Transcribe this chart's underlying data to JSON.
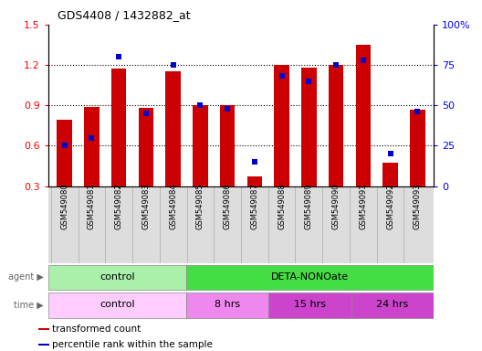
{
  "title": "GDS4408 / 1432882_at",
  "samples": [
    "GSM549080",
    "GSM549081",
    "GSM549082",
    "GSM549083",
    "GSM549084",
    "GSM549085",
    "GSM549086",
    "GSM549087",
    "GSM549088",
    "GSM549089",
    "GSM549090",
    "GSM549091",
    "GSM549092",
    "GSM549093"
  ],
  "transformed_count": [
    0.79,
    0.89,
    1.17,
    0.88,
    1.15,
    0.9,
    0.9,
    0.37,
    1.2,
    1.18,
    1.2,
    1.35,
    0.47,
    0.87
  ],
  "percentile_rank": [
    25,
    30,
    80,
    45,
    75,
    50,
    48,
    15,
    68,
    65,
    75,
    78,
    20,
    46
  ],
  "ylim_left": [
    0.3,
    1.5
  ],
  "ylim_right": [
    0,
    100
  ],
  "yticks_left": [
    0.3,
    0.6,
    0.9,
    1.2,
    1.5
  ],
  "yticks_right": [
    0,
    25,
    50,
    75,
    100
  ],
  "bar_color": "#cc0000",
  "percentile_color": "#0000cc",
  "agent_labels": [
    {
      "label": "control",
      "start": 0,
      "end": 5,
      "color": "#aaf0aa"
    },
    {
      "label": "DETA-NONOate",
      "start": 5,
      "end": 14,
      "color": "#44dd44"
    }
  ],
  "time_labels": [
    {
      "label": "control",
      "start": 0,
      "end": 5,
      "color": "#ffccff"
    },
    {
      "label": "8 hrs",
      "start": 5,
      "end": 8,
      "color": "#ee88ee"
    },
    {
      "label": "15 hrs",
      "start": 8,
      "end": 11,
      "color": "#cc44cc"
    },
    {
      "label": "24 hrs",
      "start": 11,
      "end": 14,
      "color": "#cc44cc"
    }
  ],
  "background_color": "#ffffff",
  "xticklabel_bg": "#dddddd",
  "legend_items": [
    {
      "label": "transformed count",
      "color": "#cc0000"
    },
    {
      "label": "percentile rank within the sample",
      "color": "#0000cc"
    }
  ]
}
